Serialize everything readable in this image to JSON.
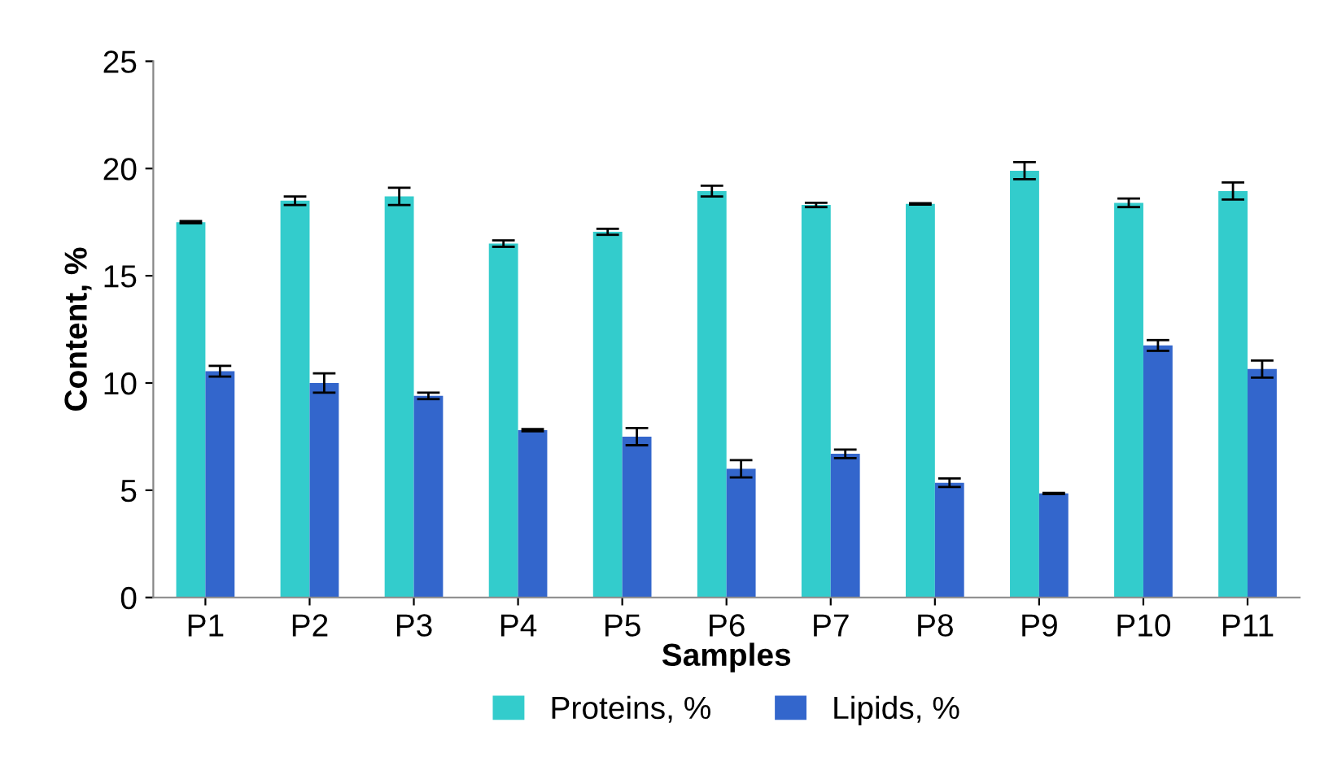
{
  "chart_data": {
    "type": "bar",
    "xlabel": "Samples",
    "ylabel": "Content, %",
    "categories": [
      "P1",
      "P2",
      "P3",
      "P4",
      "P5",
      "P6",
      "P7",
      "P8",
      "P9",
      "P10",
      "P11"
    ],
    "series": [
      {
        "name": "Proteins, %",
        "color": "#33cccc",
        "values": [
          17.5,
          18.5,
          18.7,
          16.5,
          17.05,
          18.95,
          18.3,
          18.35,
          19.9,
          18.4,
          18.95
        ],
        "errors": [
          0.05,
          0.2,
          0.4,
          0.15,
          0.14,
          0.25,
          0.1,
          0.03,
          0.4,
          0.2,
          0.4
        ]
      },
      {
        "name": "Lipids, %",
        "color": "#3366cc",
        "values": [
          10.55,
          10.0,
          9.4,
          7.8,
          7.5,
          6.0,
          6.7,
          5.35,
          4.85,
          11.75,
          10.65
        ],
        "errors": [
          0.25,
          0.45,
          0.15,
          0.05,
          0.4,
          0.4,
          0.2,
          0.2,
          0.03,
          0.25,
          0.4
        ]
      }
    ],
    "ylim": [
      0,
      25
    ],
    "yticks": [
      0,
      5,
      10,
      15,
      20,
      25
    ],
    "grid": false,
    "legend": "bottom"
  }
}
